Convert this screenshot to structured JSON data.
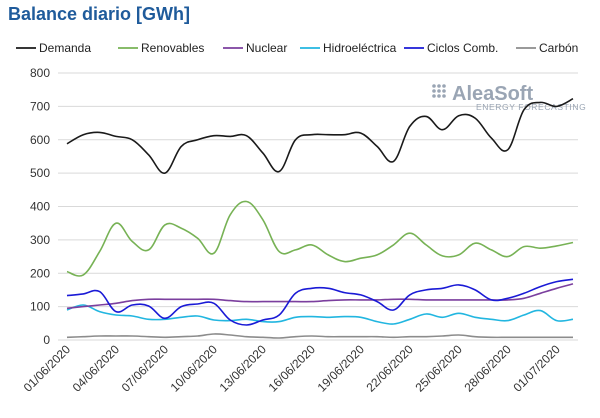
{
  "title": "Balance diario [GWh]",
  "logo": {
    "name": "AleaSoft",
    "tagline": "ENERGY FORECASTING"
  },
  "colors": {
    "title": "#1f5b9b",
    "demanda": "#1a1a1a",
    "renovables": "#77b255",
    "nuclear": "#7b3f9e",
    "hidro": "#22b6e0",
    "ciclos": "#1a1ad6",
    "carbon": "#8c8c8c",
    "grid": "#d9d9d9",
    "logo": "#9aa5b4"
  },
  "chart_data": {
    "type": "line",
    "title": "Balance diario [GWh]",
    "xlabel": "",
    "ylabel": "",
    "ylim": [
      0,
      800
    ],
    "yticks": [
      0,
      100,
      200,
      300,
      400,
      500,
      600,
      700,
      800
    ],
    "grid": true,
    "legend_position": "top",
    "xtick_labels": [
      "01/06/2020",
      "04/06/2020",
      "07/06/2020",
      "10/06/2020",
      "13/06/2020",
      "16/06/2020",
      "19/06/2020",
      "22/06/2020",
      "25/06/2020",
      "28/06/2020",
      "01/07/2020"
    ],
    "x": [
      "01/06/2020",
      "02/06/2020",
      "03/06/2020",
      "04/06/2020",
      "05/06/2020",
      "06/06/2020",
      "07/06/2020",
      "08/06/2020",
      "09/06/2020",
      "10/06/2020",
      "11/06/2020",
      "12/06/2020",
      "13/06/2020",
      "14/06/2020",
      "15/06/2020",
      "16/06/2020",
      "17/06/2020",
      "18/06/2020",
      "19/06/2020",
      "20/06/2020",
      "21/06/2020",
      "22/06/2020",
      "23/06/2020",
      "24/06/2020",
      "25/06/2020",
      "26/06/2020",
      "27/06/2020",
      "28/06/2020",
      "29/06/2020",
      "30/06/2020",
      "01/07/2020",
      "02/07/2020"
    ],
    "series": [
      {
        "name": "Demanda",
        "color_key": "demanda",
        "values": [
          588,
          615,
          622,
          610,
          600,
          555,
          500,
          580,
          600,
          612,
          610,
          612,
          560,
          505,
          600,
          615,
          615,
          615,
          620,
          580,
          535,
          640,
          670,
          630,
          672,
          665,
          605,
          570,
          690,
          712,
          700,
          723
        ]
      },
      {
        "name": "Renovables",
        "color_key": "renovables",
        "values": [
          205,
          195,
          265,
          350,
          295,
          270,
          345,
          335,
          305,
          260,
          375,
          415,
          360,
          265,
          270,
          285,
          255,
          235,
          245,
          255,
          285,
          320,
          285,
          252,
          255,
          290,
          270,
          250,
          280,
          275,
          282,
          292
        ]
      },
      {
        "name": "Nuclear",
        "color_key": "nuclear",
        "values": [
          95,
          100,
          105,
          110,
          118,
          122,
          122,
          122,
          122,
          122,
          118,
          115,
          115,
          115,
          115,
          115,
          118,
          120,
          120,
          120,
          122,
          122,
          120,
          120,
          120,
          120,
          120,
          120,
          125,
          140,
          155,
          168
        ]
      },
      {
        "name": "Hidroeléctrica",
        "color_key": "hidro",
        "values": [
          90,
          105,
          85,
          75,
          72,
          62,
          62,
          68,
          72,
          60,
          58,
          62,
          55,
          55,
          68,
          70,
          68,
          70,
          68,
          55,
          48,
          62,
          78,
          68,
          80,
          68,
          62,
          58,
          75,
          88,
          58,
          62
        ]
      },
      {
        "name": "Ciclos Comb.",
        "color_key": "ciclos",
        "values": [
          133,
          138,
          145,
          85,
          105,
          102,
          65,
          100,
          108,
          110,
          60,
          45,
          60,
          75,
          140,
          155,
          155,
          142,
          135,
          115,
          90,
          135,
          150,
          155,
          165,
          150,
          120,
          125,
          140,
          160,
          175,
          182
        ]
      },
      {
        "name": "Carbón",
        "color_key": "carbon",
        "values": [
          8,
          10,
          12,
          12,
          12,
          10,
          8,
          10,
          12,
          18,
          15,
          10,
          8,
          6,
          10,
          12,
          10,
          10,
          10,
          10,
          8,
          10,
          10,
          12,
          15,
          10,
          8,
          8,
          8,
          8,
          8,
          8
        ]
      }
    ]
  }
}
